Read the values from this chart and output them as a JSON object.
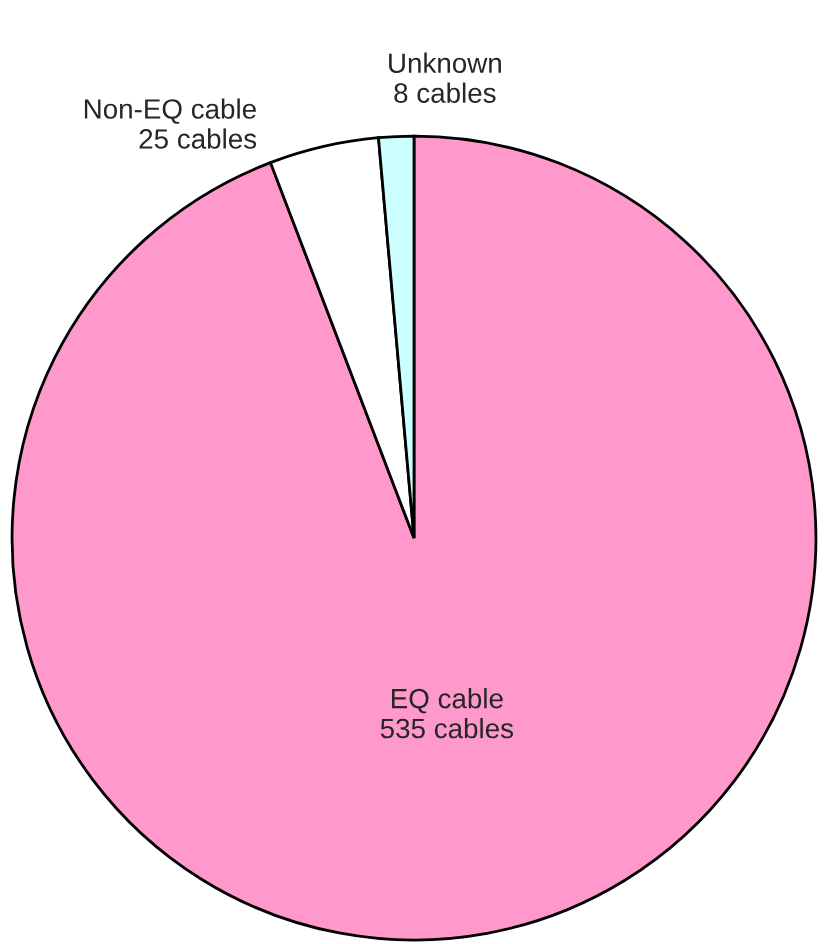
{
  "chart_data": {
    "type": "pie",
    "categories": [
      "EQ cable",
      "Non-EQ cable",
      "Unknown"
    ],
    "values": [
      535,
      25,
      8
    ],
    "value_labels": [
      "535 cables",
      "25 cables",
      "8 cables"
    ],
    "colors": [
      "#ff99cc",
      "#ffffff",
      "#ccffff"
    ]
  }
}
